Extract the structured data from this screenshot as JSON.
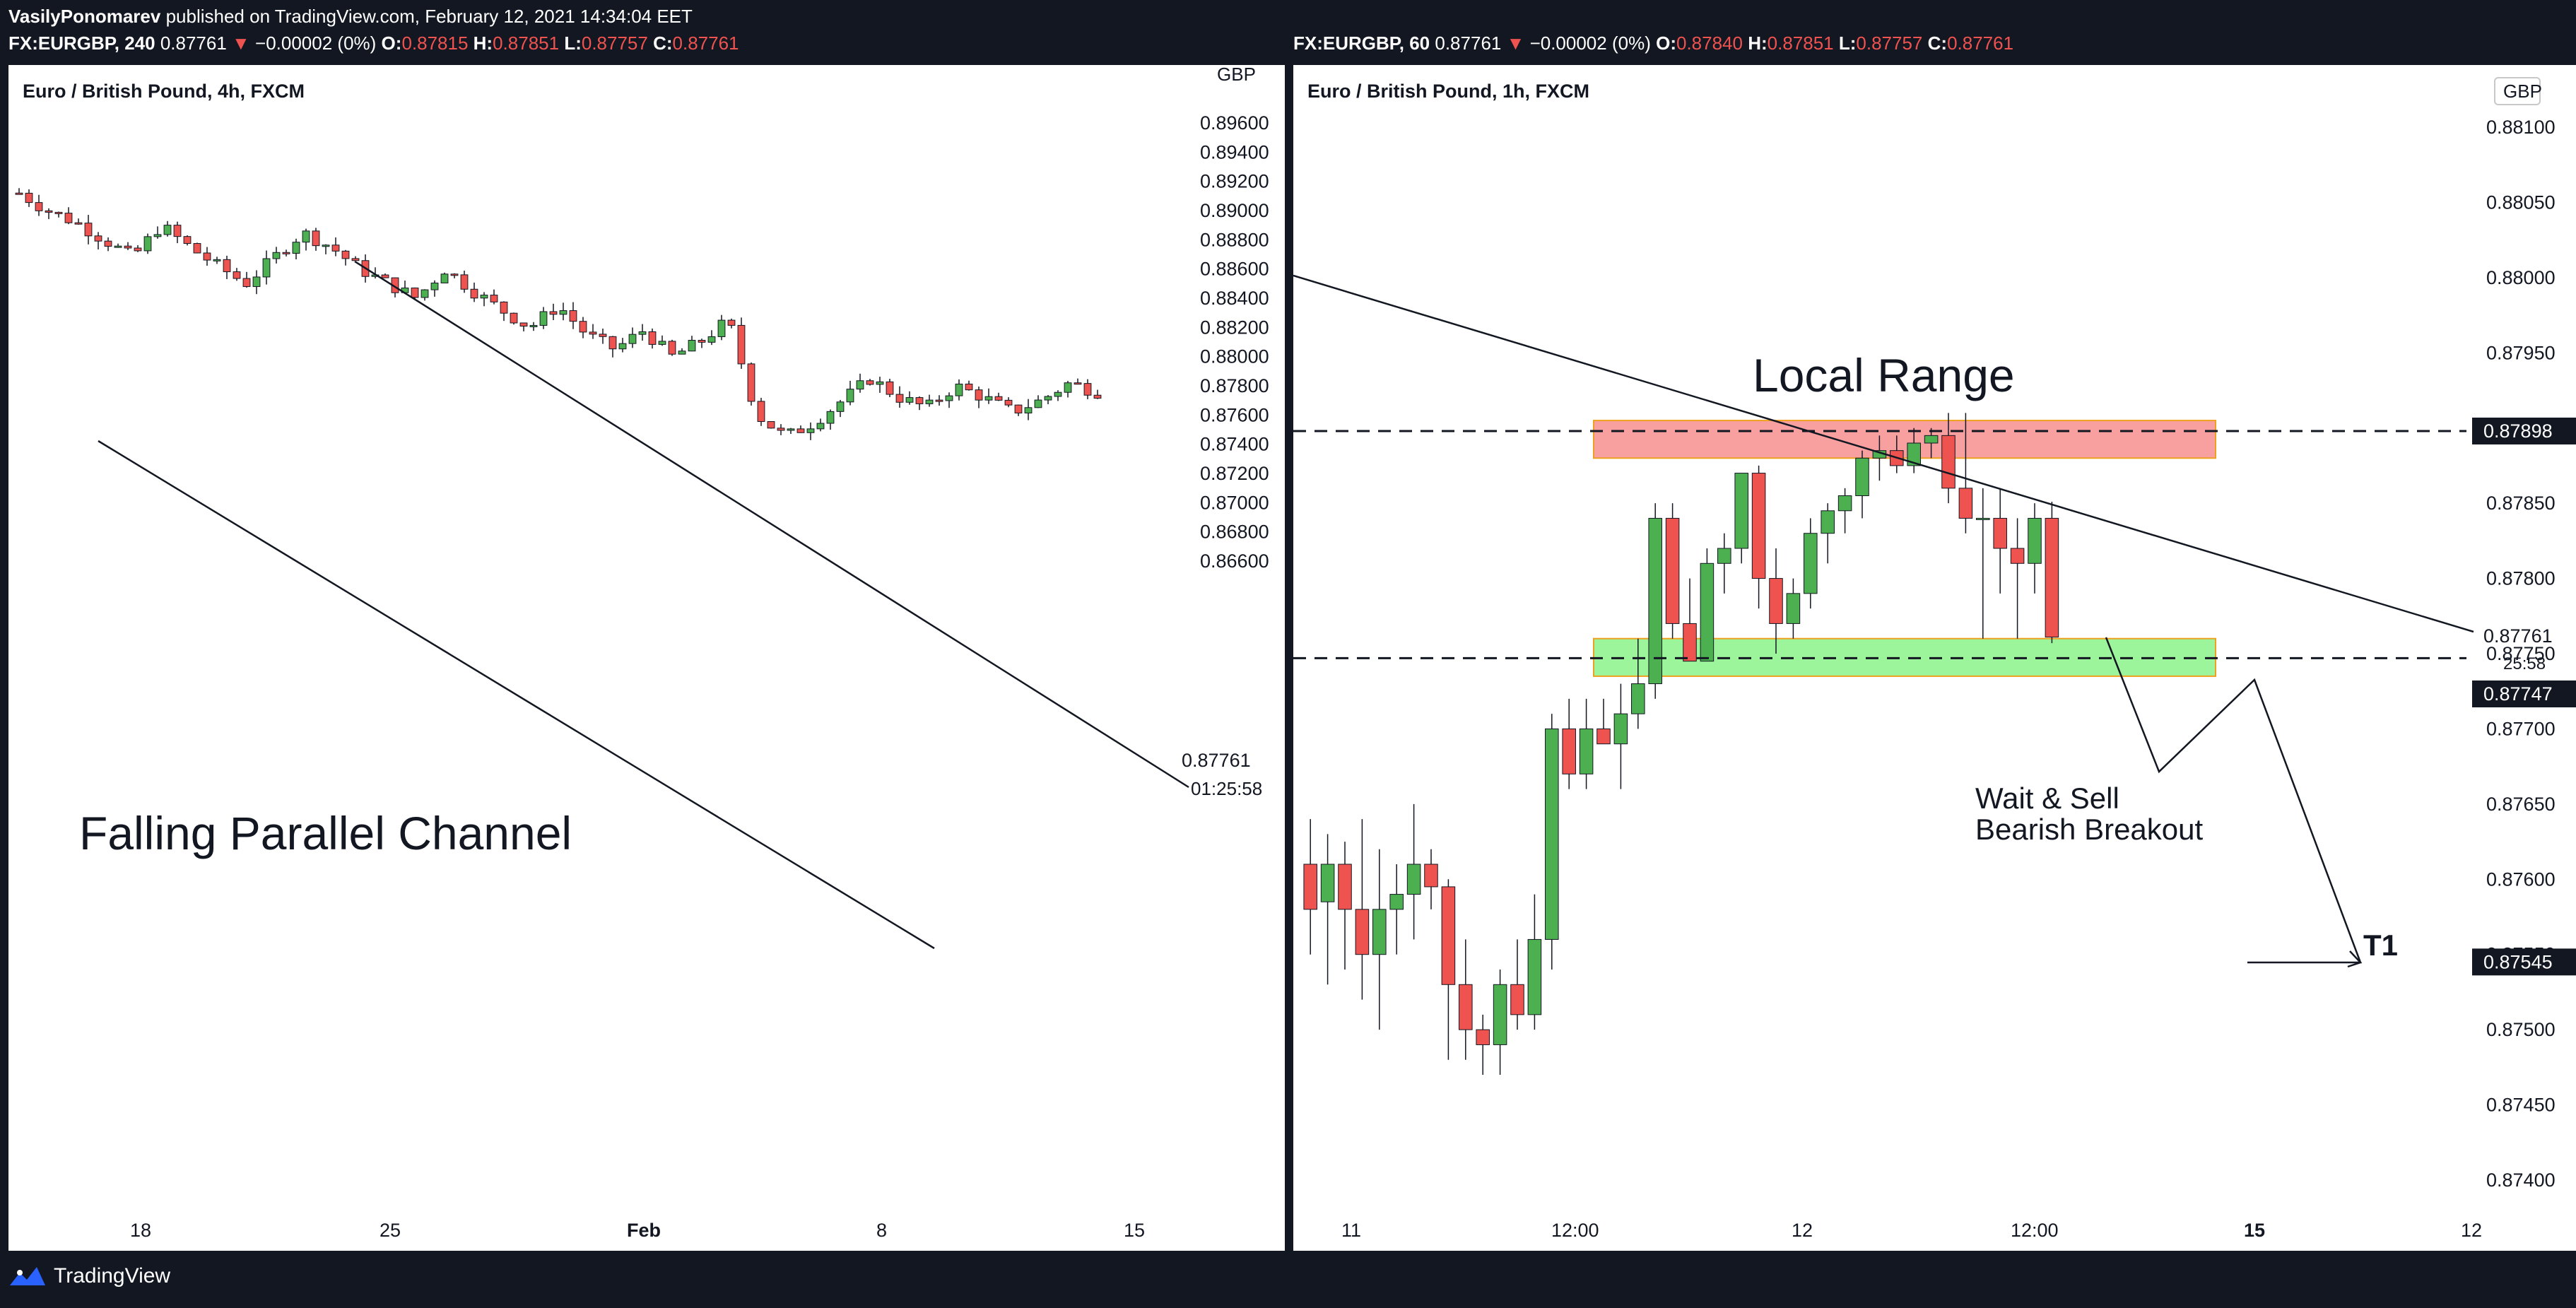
{
  "header": {
    "author": "VasilyPonomarev",
    "published_text": " published on TradingView.com, February 12, 2021 14:34:04 EET",
    "left_quote": {
      "symbol": "FX:EURGBP, 240",
      "last": "0.87761",
      "arrow": "▼",
      "change": "−0.00002 (0%)",
      "o_label": "O:",
      "o_value": "0.87815",
      "h_label": "H:",
      "h_value": "0.87851",
      "l_label": "L:",
      "l_value": "0.87757",
      "c_label": "C:",
      "c_value": "0.87761"
    },
    "right_quote": {
      "symbol": "FX:EURGBP, 60",
      "last": "0.87761",
      "arrow": "▼",
      "change": "−0.00002 (0%)",
      "o_label": "O:",
      "o_value": "0.87840",
      "h_label": "H:",
      "h_value": "0.87851",
      "l_label": "L:",
      "l_value": "0.87757",
      "c_label": "C:",
      "c_value": "0.87761"
    }
  },
  "footer": {
    "brand": "TradingView"
  },
  "colors": {
    "up": "#4caf50",
    "down": "#ef5350",
    "resistance_zone": "#f8a0a0",
    "support_zone": "#9cf59a",
    "zone_border": "#f0a020"
  },
  "chart_data": [
    {
      "type": "candlestick",
      "title": "Euro / British Pound, 4h, FXCM",
      "currency_label": "GBP",
      "y_ticks": [
        "0.89600",
        "0.89400",
        "0.89200",
        "0.89000",
        "0.88800",
        "0.88600",
        "0.88400",
        "0.88200",
        "0.88000",
        "0.87800",
        "0.87600",
        "0.87400",
        "0.87200",
        "0.87000",
        "0.86800",
        "0.86600"
      ],
      "ylim": [
        0.865,
        0.8975
      ],
      "x_ticks": [
        "18",
        "25",
        "Feb",
        "8",
        "15"
      ],
      "last_price_label": "0.87761",
      "countdown_label": "01:25:58",
      "annotation": "Falling Parallel Channel",
      "summary_path": [
        0.8912,
        0.89,
        0.8892,
        0.888,
        0.8868,
        0.889,
        0.8875,
        0.8862,
        0.885,
        0.8868,
        0.8885,
        0.8875,
        0.886,
        0.885,
        0.884,
        0.886,
        0.8845,
        0.8832,
        0.882,
        0.8835,
        0.8815,
        0.8805,
        0.8818,
        0.88,
        0.881,
        0.8825,
        0.876,
        0.8745,
        0.8755,
        0.877,
        0.8785,
        0.8772,
        0.8765,
        0.878,
        0.8772,
        0.8762,
        0.877,
        0.8782,
        0.8776
      ]
    },
    {
      "type": "candlestick",
      "title": "Euro / British Pound, 1h, FXCM",
      "currency_label": "GBP",
      "y_ticks": [
        "0.88100",
        "0.88050",
        "0.88000",
        "0.87950",
        "0.87900",
        "0.87850",
        "0.87800",
        "0.87750",
        "0.87700",
        "0.87650",
        "0.87600",
        "0.87550",
        "0.87500",
        "0.87450",
        "0.87400"
      ],
      "ylim": [
        0.8738,
        0.8813
      ],
      "x_ticks": [
        "11",
        "12:00",
        "12",
        "12:00",
        "15",
        "12"
      ],
      "price_labels": [
        "0.87898",
        "0.87761",
        "0.87747",
        "0.87545"
      ],
      "countdown_label": "25:58",
      "annotations": [
        "Local Range",
        "Wait & Sell",
        "Bearish Breakout",
        "T1"
      ],
      "resistance_zone": [
        0.8788,
        0.87905
      ],
      "support_zone": [
        0.87735,
        0.8776
      ],
      "resistance_level": 0.87898,
      "support_level": 0.87747,
      "target_level": 0.87545,
      "candles": [
        {
          "o": 0.8761,
          "h": 0.8764,
          "l": 0.8755,
          "c": 0.8758
        },
        {
          "o": 0.87585,
          "h": 0.8763,
          "l": 0.8753,
          "c": 0.8761
        },
        {
          "o": 0.8761,
          "h": 0.87625,
          "l": 0.8754,
          "c": 0.8758
        },
        {
          "o": 0.8758,
          "h": 0.8764,
          "l": 0.8752,
          "c": 0.8755
        },
        {
          "o": 0.8755,
          "h": 0.8762,
          "l": 0.875,
          "c": 0.8758
        },
        {
          "o": 0.8758,
          "h": 0.8761,
          "l": 0.8755,
          "c": 0.8759
        },
        {
          "o": 0.8759,
          "h": 0.8765,
          "l": 0.8756,
          "c": 0.8761
        },
        {
          "o": 0.8761,
          "h": 0.8762,
          "l": 0.8758,
          "c": 0.87595
        },
        {
          "o": 0.87595,
          "h": 0.876,
          "l": 0.8748,
          "c": 0.8753
        },
        {
          "o": 0.8753,
          "h": 0.8756,
          "l": 0.8748,
          "c": 0.875
        },
        {
          "o": 0.875,
          "h": 0.8751,
          "l": 0.8747,
          "c": 0.8749
        },
        {
          "o": 0.8749,
          "h": 0.8754,
          "l": 0.8747,
          "c": 0.8753
        },
        {
          "o": 0.8753,
          "h": 0.8756,
          "l": 0.875,
          "c": 0.8751
        },
        {
          "o": 0.8751,
          "h": 0.8759,
          "l": 0.875,
          "c": 0.8756
        },
        {
          "o": 0.8756,
          "h": 0.8771,
          "l": 0.8754,
          "c": 0.877
        },
        {
          "o": 0.877,
          "h": 0.8772,
          "l": 0.8766,
          "c": 0.8767
        },
        {
          "o": 0.8767,
          "h": 0.8772,
          "l": 0.8766,
          "c": 0.877
        },
        {
          "o": 0.877,
          "h": 0.8772,
          "l": 0.8769,
          "c": 0.8769
        },
        {
          "o": 0.8769,
          "h": 0.8773,
          "l": 0.8766,
          "c": 0.8771
        },
        {
          "o": 0.8771,
          "h": 0.8776,
          "l": 0.877,
          "c": 0.8773
        },
        {
          "o": 0.8773,
          "h": 0.8785,
          "l": 0.8772,
          "c": 0.8784
        },
        {
          "o": 0.8784,
          "h": 0.8785,
          "l": 0.8776,
          "c": 0.8777
        },
        {
          "o": 0.8777,
          "h": 0.878,
          "l": 0.87745,
          "c": 0.87745
        },
        {
          "o": 0.87745,
          "h": 0.8782,
          "l": 0.87745,
          "c": 0.8781
        },
        {
          "o": 0.8781,
          "h": 0.8783,
          "l": 0.8779,
          "c": 0.8782
        },
        {
          "o": 0.8782,
          "h": 0.8787,
          "l": 0.8781,
          "c": 0.8787
        },
        {
          "o": 0.8787,
          "h": 0.87875,
          "l": 0.8778,
          "c": 0.878
        },
        {
          "o": 0.878,
          "h": 0.8782,
          "l": 0.8775,
          "c": 0.8777
        },
        {
          "o": 0.8777,
          "h": 0.878,
          "l": 0.8776,
          "c": 0.8779
        },
        {
          "o": 0.8779,
          "h": 0.8784,
          "l": 0.8778,
          "c": 0.8783
        },
        {
          "o": 0.8783,
          "h": 0.8785,
          "l": 0.8781,
          "c": 0.87845
        },
        {
          "o": 0.87845,
          "h": 0.8786,
          "l": 0.8783,
          "c": 0.87855
        },
        {
          "o": 0.87855,
          "h": 0.87885,
          "l": 0.8784,
          "c": 0.8788
        },
        {
          "o": 0.8788,
          "h": 0.87895,
          "l": 0.87865,
          "c": 0.87885
        },
        {
          "o": 0.87885,
          "h": 0.87895,
          "l": 0.8787,
          "c": 0.87875
        },
        {
          "o": 0.87875,
          "h": 0.879,
          "l": 0.8787,
          "c": 0.8789
        },
        {
          "o": 0.8789,
          "h": 0.879,
          "l": 0.8788,
          "c": 0.87895
        },
        {
          "o": 0.87895,
          "h": 0.8791,
          "l": 0.8785,
          "c": 0.8786
        },
        {
          "o": 0.8786,
          "h": 0.8791,
          "l": 0.8783,
          "c": 0.8784
        },
        {
          "o": 0.8784,
          "h": 0.8786,
          "l": 0.8776,
          "c": 0.8784
        },
        {
          "o": 0.8784,
          "h": 0.8786,
          "l": 0.8779,
          "c": 0.8782
        },
        {
          "o": 0.8782,
          "h": 0.8784,
          "l": 0.8776,
          "c": 0.8781
        },
        {
          "o": 0.8781,
          "h": 0.8785,
          "l": 0.8779,
          "c": 0.8784
        },
        {
          "o": 0.8784,
          "h": 0.87851,
          "l": 0.87757,
          "c": 0.87761
        }
      ]
    }
  ]
}
